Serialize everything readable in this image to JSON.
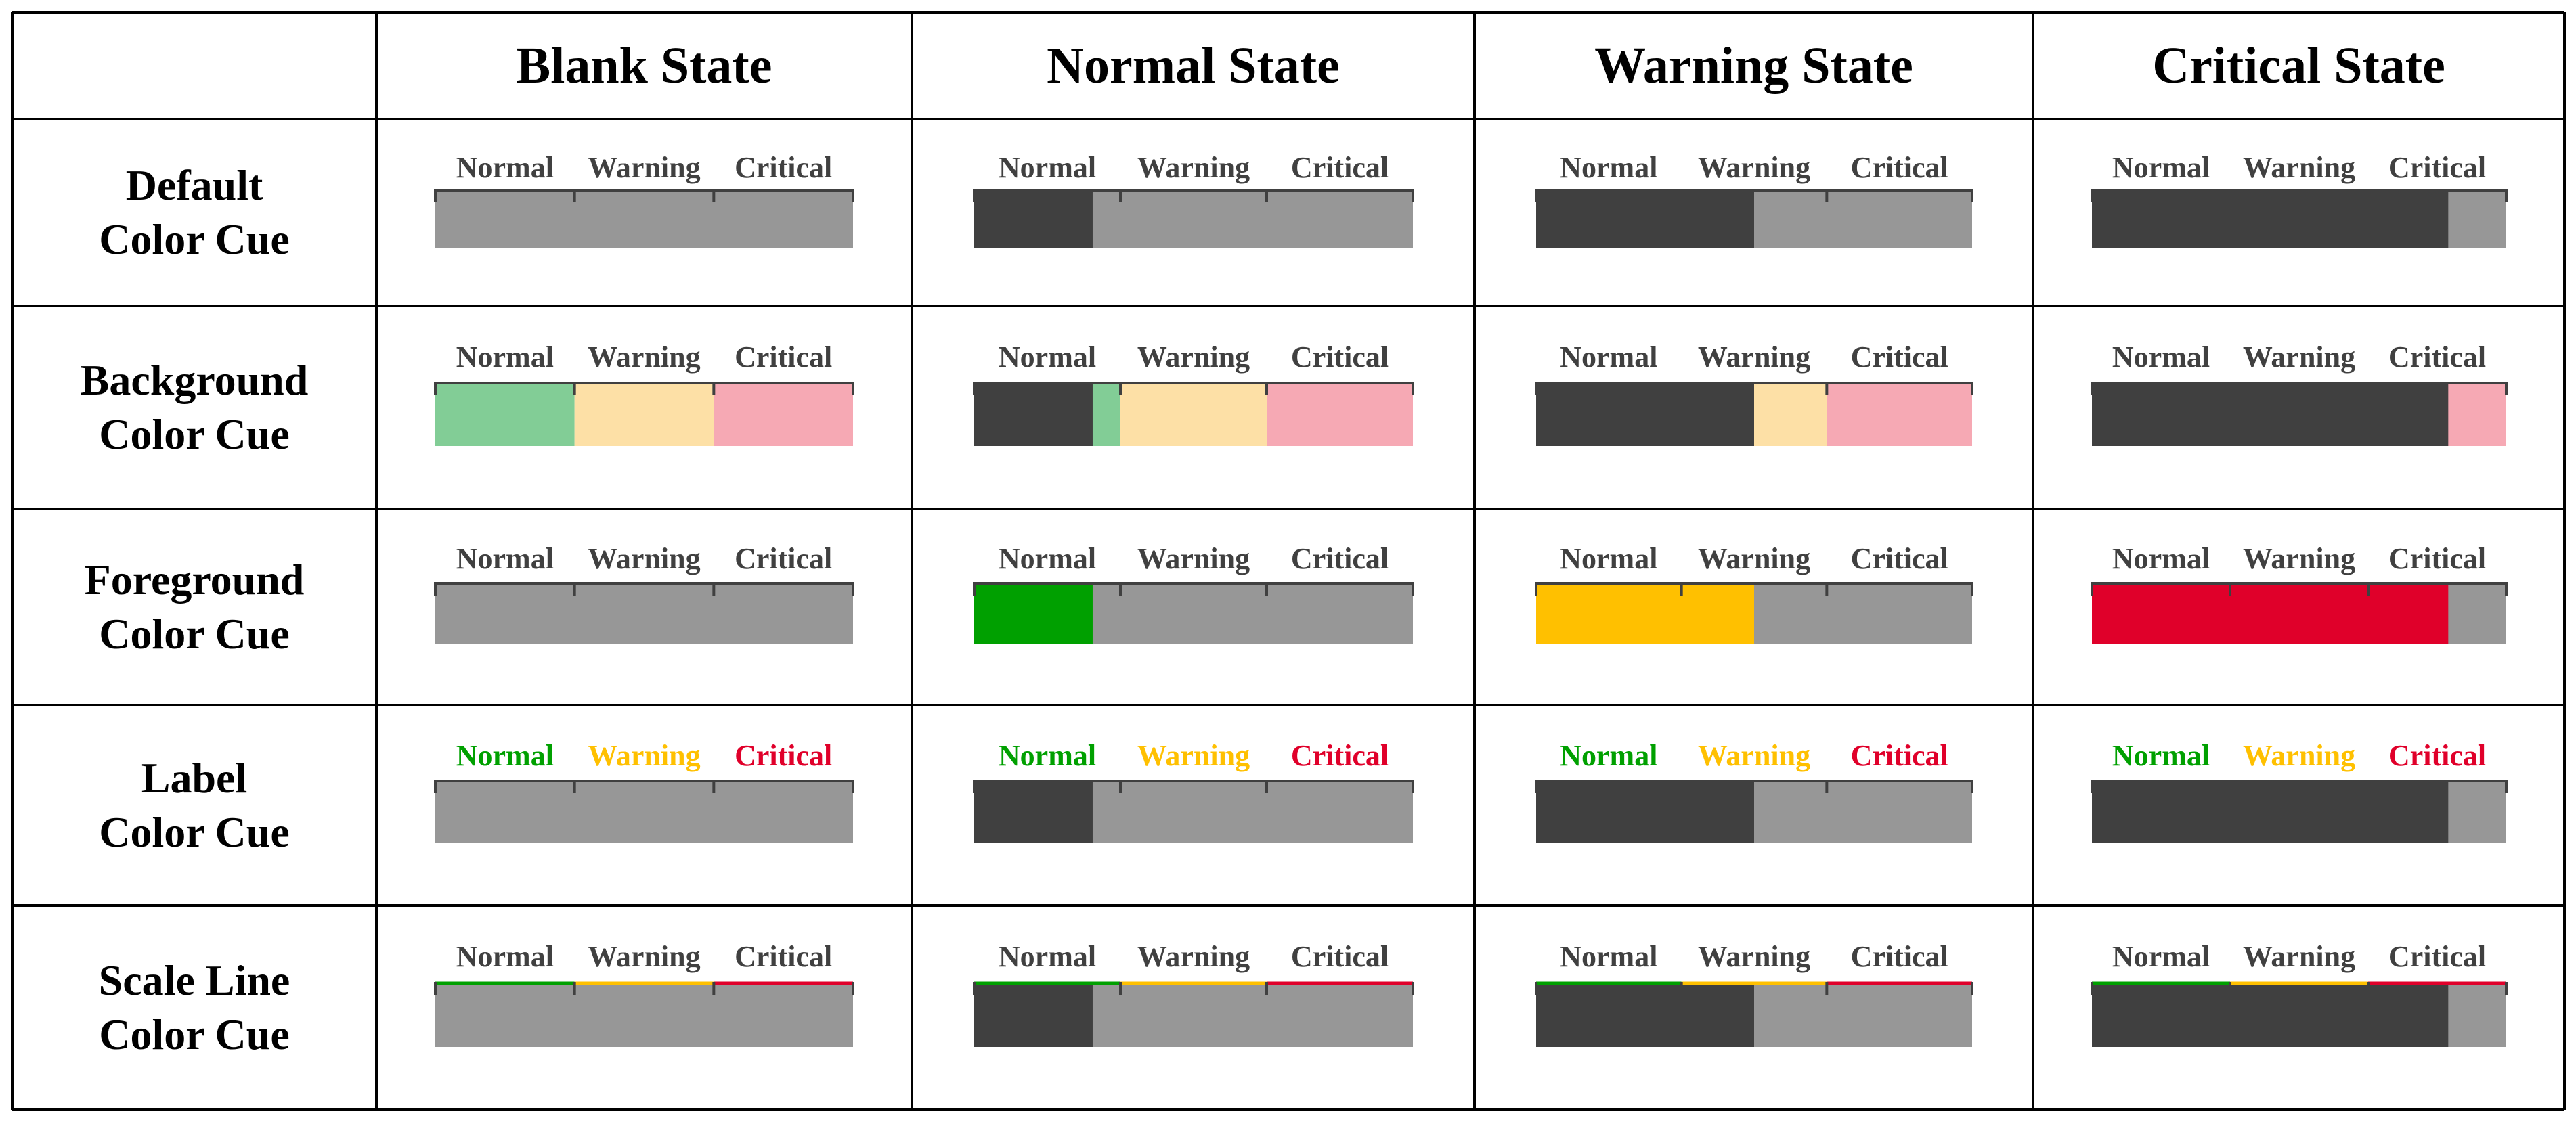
{
  "corner": "",
  "columns": [
    {
      "key": "blank",
      "label": "Blank State",
      "value": 0.0
    },
    {
      "key": "normal",
      "label": "Normal State",
      "value": 0.27
    },
    {
      "key": "warning",
      "label": "Warning State",
      "value": 0.5
    },
    {
      "key": "critical",
      "label": "Critical State",
      "value": 0.86
    }
  ],
  "scale_labels": [
    "Normal",
    "Warning",
    "Critical"
  ],
  "rows": [
    {
      "key": "default",
      "title_line1": "Default",
      "title_line2": "Color Cue"
    },
    {
      "key": "background",
      "title_line1": "Background",
      "title_line2": "Color Cue"
    },
    {
      "key": "foreground",
      "title_line1": "Foreground",
      "title_line2": "Color Cue"
    },
    {
      "key": "label",
      "title_line1": "Label",
      "title_line2": "Color Cue"
    },
    {
      "key": "scaleline",
      "title_line1": "Scale Line",
      "title_line2": "Color Cue"
    }
  ],
  "colors": {
    "track": "#979797",
    "fill": "#404040",
    "label_default": "#404040",
    "grid": "#000000",
    "green": "#00a000",
    "yellow": "#ffc000",
    "red": "#e0002a",
    "bg_green": "#82cd96",
    "bg_yellow": "#fde0a6",
    "bg_red": "#f6a9b4"
  }
}
